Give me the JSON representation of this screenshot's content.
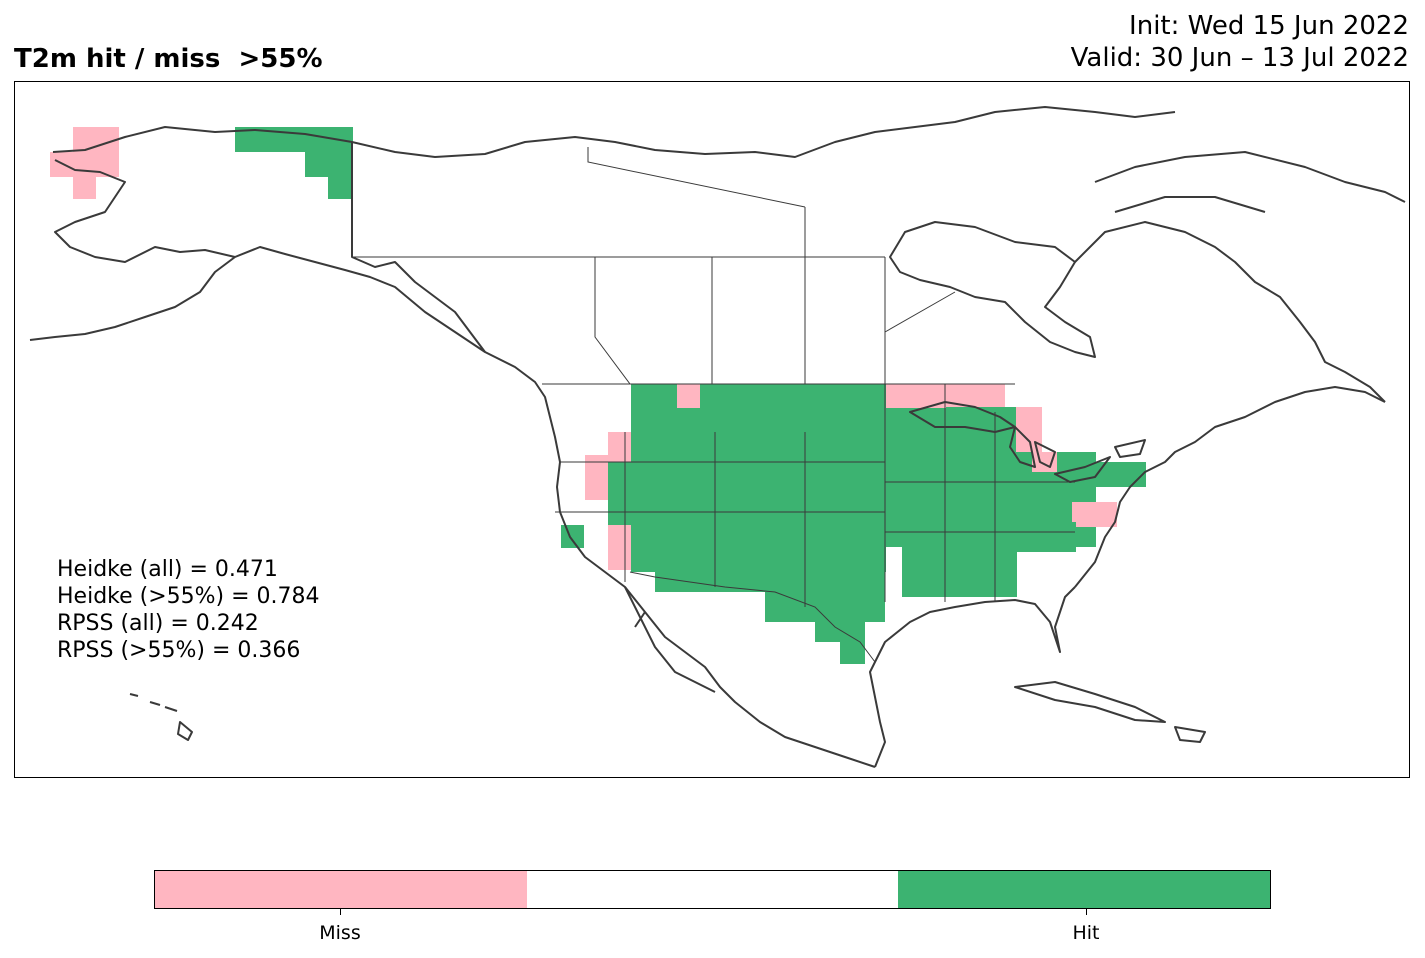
{
  "header": {
    "title": "T2m hit / miss  >55%",
    "init": "Init: Wed 15 Jun 2022",
    "valid": "Valid: 30 Jun – 13 Jul 2022"
  },
  "stats": {
    "heidke_all": "Heidke (all) = 0.471",
    "heidke_55": "Heidke (>55%) = 0.784",
    "rpss_all": "RPSS (all) = 0.242",
    "rpss_55": "RPSS (>55%) = 0.366"
  },
  "colorbar": {
    "colors": [
      "#ffb6c1",
      "#ffffff",
      "#3cb371"
    ],
    "labels": [
      "Miss",
      "Hit"
    ]
  },
  "colors": {
    "miss": "#ffb6c1",
    "hit": "#3cb371",
    "coast": "#3a3a3a"
  }
}
